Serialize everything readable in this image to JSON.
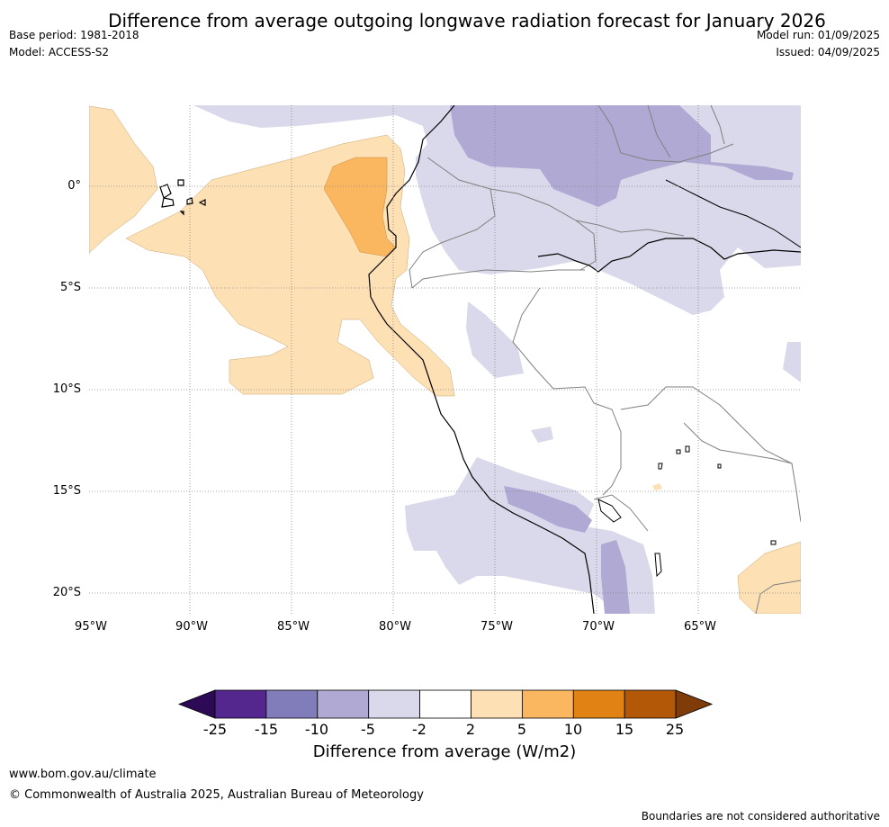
{
  "title": "Difference from average outgoing longwave radiation forecast for January 2026",
  "header": {
    "base_period": "Base period: 1981-2018",
    "model": "Model: ACCESS-S2",
    "model_run": "Model run: 01/09/2025",
    "issued": "Issued: 04/09/2025"
  },
  "map": {
    "lat_labels": [
      "0°",
      "5°S",
      "10°S",
      "15°S",
      "20°S"
    ],
    "lon_labels": [
      "95°W",
      "90°W",
      "85°W",
      "80°W",
      "75°W",
      "70°W",
      "65°W"
    ]
  },
  "colorbar": {
    "ticks": [
      "-25",
      "-15",
      "-10",
      "-5",
      "-2",
      "2",
      "5",
      "10",
      "15",
      "25"
    ],
    "colors": [
      "#2d0a55",
      "#54278f",
      "#807dba",
      "#b0a9d3",
      "#d9d9eb",
      "#ffffff",
      "#fde0b4",
      "#fbb760",
      "#e08214",
      "#b35806",
      "#7f3b08"
    ],
    "units_label": "Difference from average (W/m2)"
  },
  "footer": {
    "website": "www.bom.gov.au/climate",
    "copyright": "© Commonwealth of Australia 2025, Australian Bureau of Meteorology",
    "disclaimer": "Boundaries are not considered authoritative"
  }
}
